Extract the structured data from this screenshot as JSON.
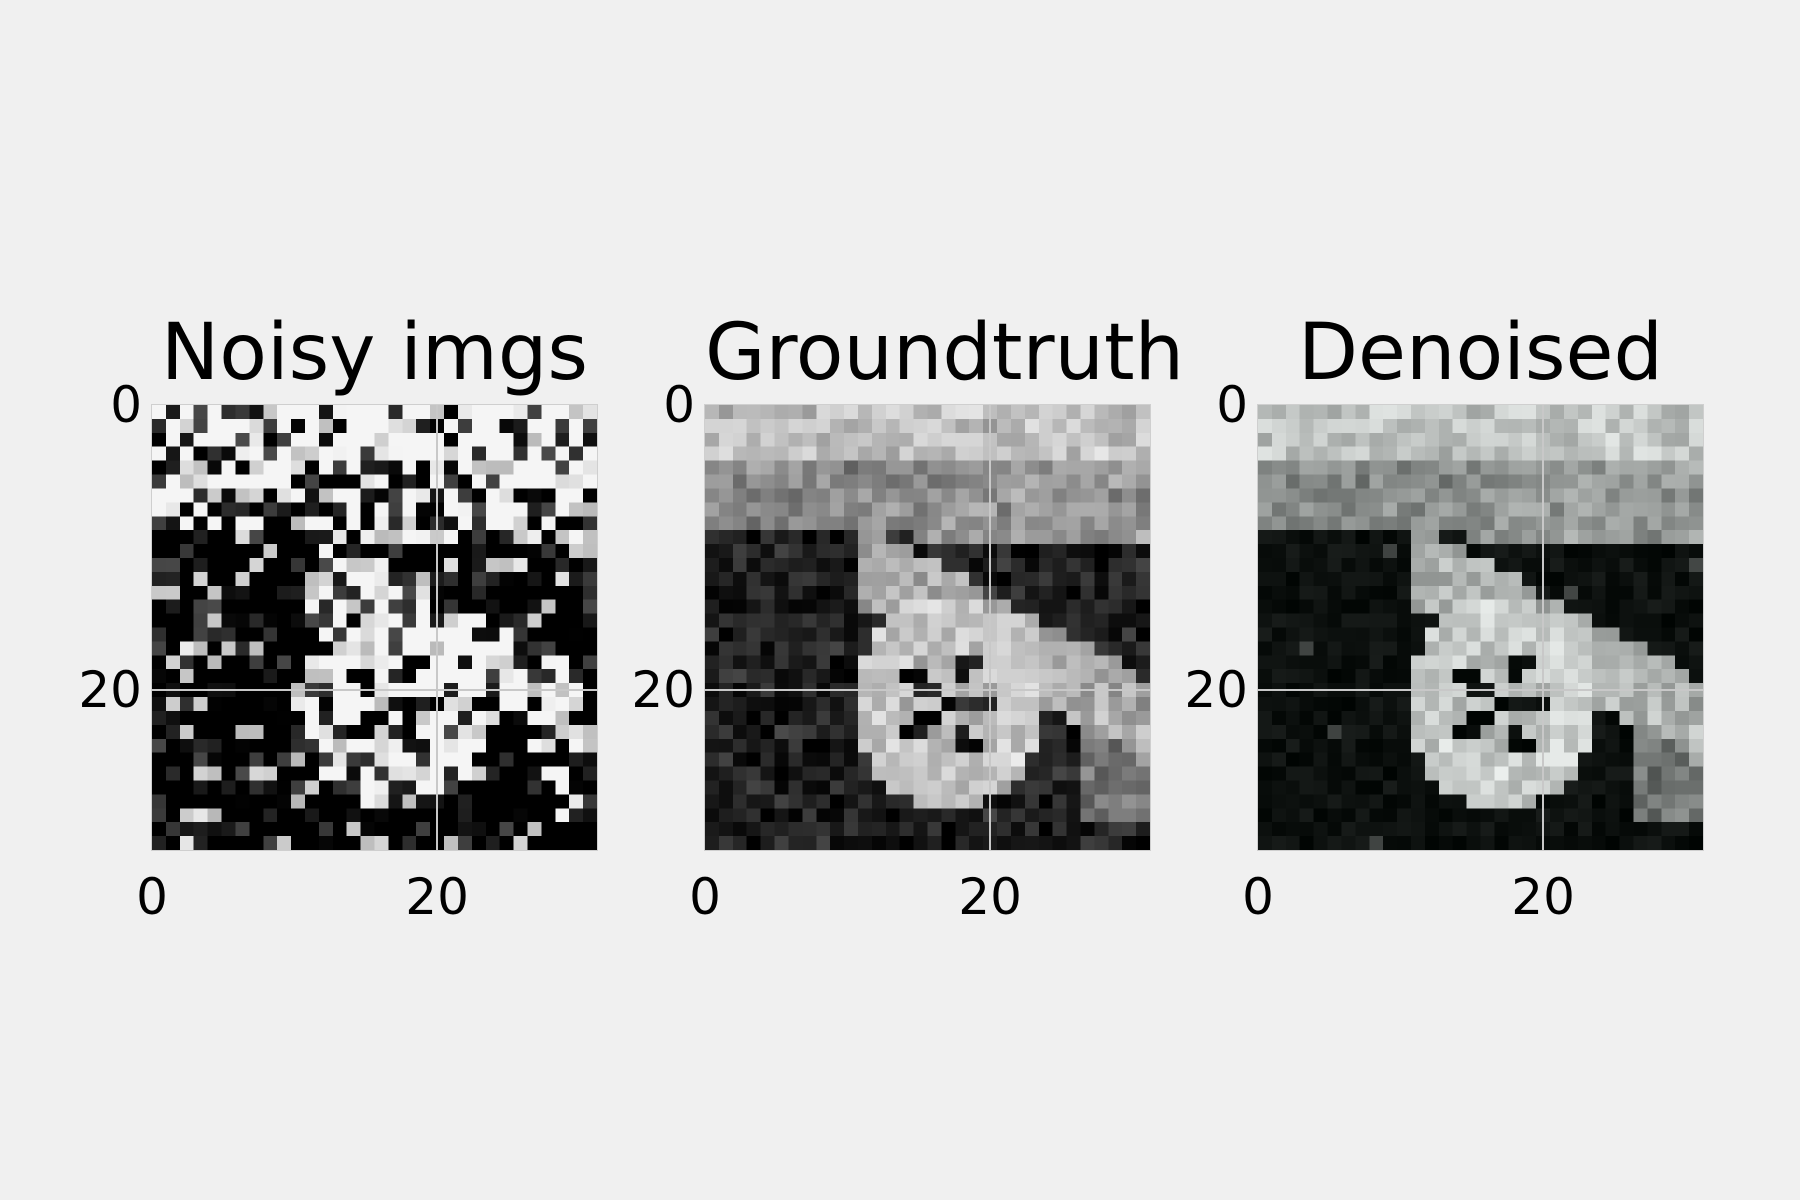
{
  "panels": [
    {
      "title": "Noisy imgs",
      "style": "noisy",
      "colors": {
        "dark": "#000000",
        "light": "#ffffff"
      }
    },
    {
      "title": "Groundtruth",
      "style": "clean",
      "colors": {
        "dark": "#0a0a0a",
        "light": "#f2f2f2"
      }
    },
    {
      "title": "Denoised",
      "style": "denoised",
      "colors": {
        "dark": "#050505",
        "light": "#e7ece9"
      }
    }
  ],
  "axis": {
    "xticks": [
      0,
      20
    ],
    "yticks": [
      0,
      20
    ],
    "range": [
      0,
      31
    ],
    "grid": true
  }
}
